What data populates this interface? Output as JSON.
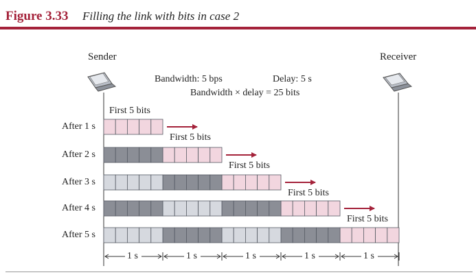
{
  "figure": {
    "label": "Figure 3.33",
    "title": "Filling the link with bits in case 2"
  },
  "endpoints": {
    "sender": "Sender",
    "receiver": "Receiver"
  },
  "params": {
    "bandwidth": "Bandwidth: 5 bps",
    "delay": "Delay: 5 s",
    "product": "Bandwidth × delay = 25 bits"
  },
  "bit_label": "First 5 bits",
  "rows": [
    {
      "label": "After 1 s"
    },
    {
      "label": "After 2 s"
    },
    {
      "label": "After 3 s"
    },
    {
      "label": "After 4 s"
    },
    {
      "label": "After 5 s"
    }
  ],
  "timeline": [
    "1 s",
    "1 s",
    "1 s",
    "1 s",
    "1 s"
  ],
  "colors": {
    "accent": "#a4223a",
    "pink_bits": "#f2d6df",
    "dark_bits": "#8b8e96",
    "light_bits": "#d6d9df",
    "bit_border": "#555a63"
  }
}
